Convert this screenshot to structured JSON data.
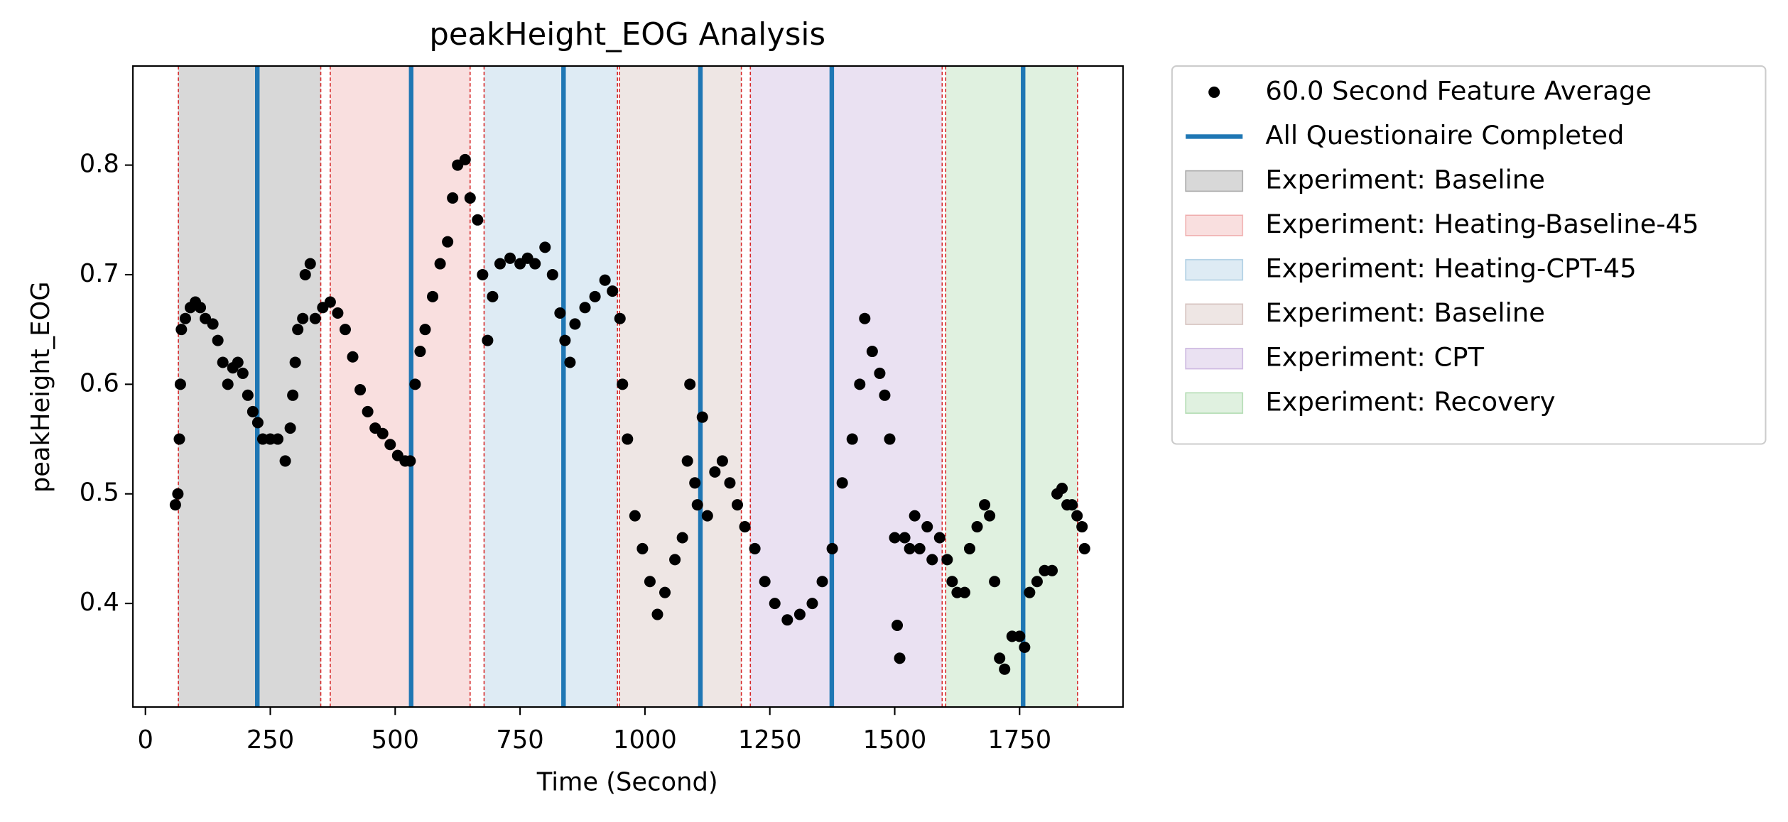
{
  "chart_data": {
    "type": "scatter",
    "title": "peakHeight_EOG Analysis",
    "xlabel": "Time (Second)",
    "ylabel": "peakHeight_EOG",
    "xlim": [
      -25,
      1957
    ],
    "ylim": [
      0.3055,
      0.8904
    ],
    "xticks": [
      0,
      250,
      500,
      750,
      1000,
      1250,
      1500,
      1750
    ],
    "yticks": [
      0.4,
      0.5,
      0.6,
      0.7,
      0.8
    ],
    "legend": "outside-upper-right",
    "x": [
      60,
      65,
      68,
      70,
      72,
      80,
      90,
      100,
      110,
      120,
      135,
      145,
      155,
      165,
      175,
      185,
      195,
      205,
      215,
      225,
      235,
      250,
      265,
      280,
      290,
      295,
      300,
      305,
      315,
      320,
      330,
      340,
      355,
      370,
      385,
      400,
      415,
      430,
      445,
      460,
      475,
      490,
      505,
      520,
      530,
      540,
      550,
      560,
      575,
      590,
      605,
      615,
      625,
      640,
      650,
      665,
      675,
      685,
      695,
      710,
      730,
      750,
      765,
      780,
      800,
      815,
      830,
      840,
      850,
      860,
      880,
      900,
      920,
      935,
      950,
      955,
      965,
      980,
      995,
      1010,
      1025,
      1040,
      1060,
      1075,
      1085,
      1090,
      1100,
      1105,
      1115,
      1125,
      1140,
      1155,
      1170,
      1185,
      1200,
      1220,
      1240,
      1260,
      1285,
      1310,
      1335,
      1355,
      1375,
      1395,
      1415,
      1430,
      1440,
      1455,
      1470,
      1480,
      1490,
      1500,
      1505,
      1510,
      1520,
      1530,
      1540,
      1550,
      1565,
      1575,
      1590,
      1605,
      1615,
      1625,
      1640,
      1650,
      1665,
      1680,
      1690,
      1700,
      1710,
      1720,
      1735,
      1750,
      1760,
      1770,
      1785,
      1800,
      1815,
      1825,
      1835,
      1845,
      1855,
      1865,
      1875,
      1880
    ],
    "series": [
      {
        "name": "60.0 Second Feature Average",
        "color": "#000000",
        "values": [
          0.49,
          0.5,
          0.55,
          0.6,
          0.65,
          0.66,
          0.67,
          0.675,
          0.67,
          0.66,
          0.655,
          0.64,
          0.62,
          0.6,
          0.615,
          0.62,
          0.61,
          0.59,
          0.575,
          0.565,
          0.55,
          0.55,
          0.55,
          0.53,
          0.56,
          0.59,
          0.62,
          0.65,
          0.66,
          0.7,
          0.71,
          0.66,
          0.67,
          0.675,
          0.665,
          0.65,
          0.625,
          0.595,
          0.575,
          0.56,
          0.555,
          0.545,
          0.535,
          0.53,
          0.53,
          0.6,
          0.63,
          0.65,
          0.68,
          0.71,
          0.73,
          0.77,
          0.8,
          0.805,
          0.77,
          0.75,
          0.7,
          0.64,
          0.68,
          0.71,
          0.715,
          0.71,
          0.715,
          0.71,
          0.725,
          0.7,
          0.665,
          0.64,
          0.62,
          0.655,
          0.67,
          0.68,
          0.695,
          0.685,
          0.66,
          0.6,
          0.55,
          0.48,
          0.45,
          0.42,
          0.39,
          0.41,
          0.44,
          0.46,
          0.53,
          0.6,
          0.51,
          0.49,
          0.57,
          0.48,
          0.52,
          0.53,
          0.51,
          0.49,
          0.47,
          0.45,
          0.42,
          0.4,
          0.385,
          0.39,
          0.4,
          0.42,
          0.45,
          0.51,
          0.55,
          0.6,
          0.66,
          0.63,
          0.61,
          0.59,
          0.55,
          0.46,
          0.38,
          0.35,
          0.46,
          0.45,
          0.48,
          0.45,
          0.47,
          0.44,
          0.46,
          0.44,
          0.42,
          0.41,
          0.41,
          0.45,
          0.47,
          0.49,
          0.48,
          0.42,
          0.35,
          0.34,
          0.37,
          0.37,
          0.36,
          0.41,
          0.42,
          0.43,
          0.43,
          0.5,
          0.505,
          0.49,
          0.49,
          0.48,
          0.47,
          0.45
        ]
      }
    ],
    "vlines": {
      "name": "All Questionaire Completed",
      "color": "#1f77b4",
      "x": [
        224,
        532,
        837,
        1111,
        1374,
        1757
      ]
    },
    "span_edge_color": "#d62728",
    "spans": [
      {
        "name": "Experiment: Baseline",
        "color": "#7f7f7f",
        "alpha": 0.3,
        "start": 66,
        "end": 351
      },
      {
        "name": "Experiment: Heating-Baseline-45",
        "color": "#d62728",
        "alpha": 0.15,
        "start": 370,
        "end": 650
      },
      {
        "name": "Experiment: Heating-CPT-45",
        "color": "#1f77b4",
        "alpha": 0.15,
        "start": 678,
        "end": 945
      },
      {
        "name": "Experiment: Baseline",
        "color": "#8c564b",
        "alpha": 0.15,
        "start": 949,
        "end": 1193
      },
      {
        "name": "Experiment: CPT",
        "color": "#9467bd",
        "alpha": 0.2,
        "start": 1211,
        "end": 1595
      },
      {
        "name": "Experiment: Recovery",
        "color": "#2ca02c",
        "alpha": 0.15,
        "start": 1602,
        "end": 1866
      }
    ]
  }
}
